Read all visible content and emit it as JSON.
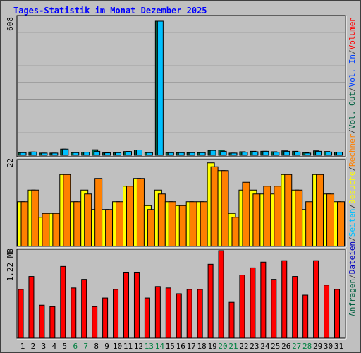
{
  "title": "Tages-Statistik im Monat Dezember 2025",
  "right_labels": [
    {
      "text": "Anfragen",
      "color": "#006040"
    },
    {
      "text": "/",
      "color": "#404040"
    },
    {
      "text": "Dateien",
      "color": "#0000c0"
    },
    {
      "text": "/",
      "color": "#404040"
    },
    {
      "text": "Seiten",
      "color": "#00c0ff"
    },
    {
      "text": "/",
      "color": "#404040"
    },
    {
      "text": "Besuche",
      "color": "#ffff00"
    },
    {
      "text": "/",
      "color": "#404040"
    },
    {
      "text": "Rechner",
      "color": "#ff8000"
    },
    {
      "text": "/",
      "color": "#404040"
    },
    {
      "text": "Vol. Out",
      "color": "#006040"
    },
    {
      "text": "/",
      "color": "#404040"
    },
    {
      "text": "Vol. In",
      "color": "#0040ff"
    },
    {
      "text": "/",
      "color": "#404040"
    },
    {
      "text": "Volumen",
      "color": "#ff0000"
    }
  ],
  "colors": {
    "anfragen": "#006040",
    "dateien": "#00c0ff",
    "besuche": "#ffff00",
    "rechner": "#ff8000",
    "volumen": "#ff0000",
    "weekend_label": "#008040",
    "weekday_label": "#000000"
  },
  "chart_data": [
    {
      "type": "bar",
      "panel": "top",
      "axis_max_label": "608",
      "ylim": [
        0,
        608
      ],
      "categories": [
        "1",
        "2",
        "3",
        "4",
        "5",
        "6",
        "7",
        "8",
        "9",
        "10",
        "11",
        "12",
        "13",
        "14",
        "15",
        "16",
        "17",
        "18",
        "19",
        "20",
        "21",
        "22",
        "23",
        "24",
        "25",
        "26",
        "27",
        "28",
        "29",
        "30",
        "31"
      ],
      "weekend_days": [
        "6",
        "7",
        "13",
        "14",
        "20",
        "21",
        "27",
        "28"
      ],
      "series": [
        {
          "name": "Anfragen",
          "values": [
            12,
            15,
            10,
            10,
            28,
            12,
            14,
            25,
            11,
            12,
            17,
            24,
            12,
            608,
            12,
            12,
            12,
            12,
            22,
            24,
            10,
            16,
            18,
            18,
            16,
            20,
            18,
            12,
            20,
            17,
            14
          ]
        },
        {
          "name": "Dateien",
          "values": [
            12,
            15,
            10,
            10,
            28,
            12,
            14,
            18,
            11,
            12,
            17,
            24,
            12,
            608,
            12,
            12,
            12,
            12,
            22,
            18,
            10,
            14,
            16,
            18,
            14,
            18,
            15,
            10,
            18,
            15,
            14
          ]
        }
      ]
    },
    {
      "type": "bar",
      "panel": "middle",
      "axis_max_label": "22",
      "ylim": [
        0,
        22
      ],
      "categories": [
        "1",
        "2",
        "3",
        "4",
        "5",
        "6",
        "7",
        "8",
        "9",
        "10",
        "11",
        "12",
        "13",
        "14",
        "15",
        "16",
        "17",
        "18",
        "19",
        "20",
        "21",
        "22",
        "23",
        "24",
        "25",
        "26",
        "27",
        "28",
        "29",
        "30",
        "31"
      ],
      "series": [
        {
          "name": "Besuche",
          "values": [
            11.5,
            14.5,
            7.5,
            8.5,
            18.5,
            11.5,
            14.5,
            9.5,
            9.5,
            11.5,
            15.5,
            17.5,
            10.5,
            14.5,
            11.5,
            10.5,
            11.5,
            11.5,
            21.5,
            19.5,
            8.5,
            14.5,
            14.5,
            13.5,
            13.5,
            18.5,
            14.5,
            9.5,
            18.5,
            13.5,
            11.5
          ]
        },
        {
          "name": "Rechner",
          "values": [
            11.5,
            14.5,
            8.5,
            8.5,
            18.5,
            11.5,
            13.5,
            17.5,
            9.5,
            11.5,
            15.5,
            17.5,
            9.5,
            13.5,
            11.5,
            10.5,
            11.5,
            11.5,
            20.5,
            19.5,
            7.5,
            16.5,
            13.5,
            15.5,
            15.5,
            18.5,
            14.5,
            11.5,
            18.5,
            13.5,
            11.5
          ]
        }
      ]
    },
    {
      "type": "bar",
      "panel": "bottom",
      "axis_max_label": "1.22 MB",
      "ylim": [
        0,
        1.22
      ],
      "categories": [
        "1",
        "2",
        "3",
        "4",
        "5",
        "6",
        "7",
        "8",
        "9",
        "10",
        "11",
        "12",
        "13",
        "14",
        "15",
        "16",
        "17",
        "18",
        "19",
        "20",
        "21",
        "22",
        "23",
        "24",
        "25",
        "26",
        "27",
        "28",
        "29",
        "30",
        "31"
      ],
      "series": [
        {
          "name": "Volumen",
          "values": [
            0.68,
            0.86,
            0.46,
            0.44,
            1.0,
            0.7,
            0.82,
            0.44,
            0.56,
            0.68,
            0.92,
            0.92,
            0.56,
            0.72,
            0.7,
            0.62,
            0.68,
            0.68,
            1.03,
            1.22,
            0.5,
            0.88,
            0.98,
            1.06,
            0.82,
            1.08,
            0.86,
            0.6,
            1.08,
            0.74,
            0.68
          ]
        }
      ]
    }
  ]
}
